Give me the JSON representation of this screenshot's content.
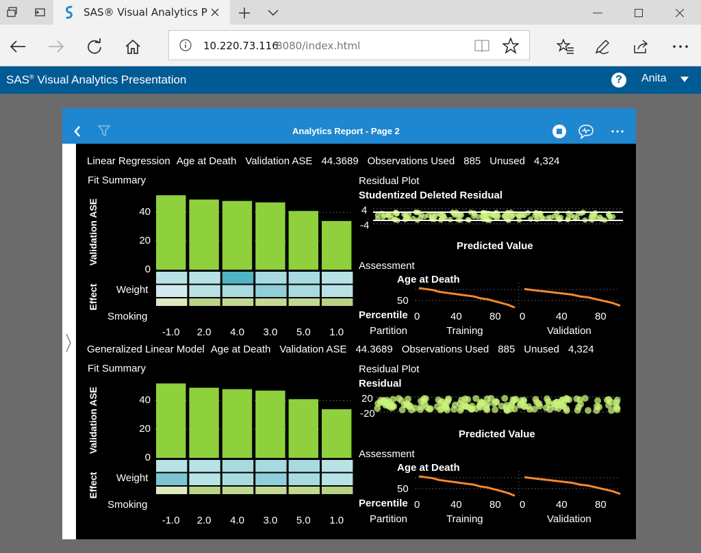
{
  "browser": {
    "tab_title": "SAS® Visual Analytics P",
    "url_host": "10.220.73.116",
    "url_rest": ":8080/index.html"
  },
  "app": {
    "title_main": "SAS",
    "title_sup": "®",
    "title_rest": " Visual Analytics Presentation",
    "help_label": "?",
    "user_name": "Anita"
  },
  "report": {
    "page_title": "Analytics Report - Page 2"
  },
  "colors": {
    "bar": "#8ed13c",
    "chrome_blue": "#005a94",
    "report_header": "#1f87cf",
    "scatter": "#c8f27a",
    "assessment_line": "#f28a2e"
  },
  "models": [
    {
      "summary": [
        "Linear Regression",
        "Age at Death",
        "Validation ASE",
        "44.3689",
        "Observations Used",
        "885",
        "Unused",
        "4,324"
      ],
      "fit_title": "Fit Summary",
      "y_axis_label": "Validation ASE",
      "effect_label": "Effect",
      "y_ticks": [
        "40",
        "20",
        "0"
      ],
      "row_labels": [
        "Weight",
        "Smoking"
      ],
      "categories": [
        "-1.0",
        "2.0",
        "4.0",
        "3.0",
        "5.0",
        "1.0"
      ],
      "bar_values": [
        52,
        49,
        48,
        47,
        41,
        34
      ],
      "heat_weight": [
        "#b8e2e6",
        "#b8e2e6",
        "#4fb4c3",
        "#a8dbe0",
        "#a8dbe0",
        "#b8e2e6"
      ],
      "heat_mid": [
        "#d2eaf0",
        "#b8e2e6",
        "#a8dbe0",
        "#8fcfd9",
        "#a8dbe0",
        "#b8e2e6"
      ],
      "heat_mid2": [
        "#dde9bf",
        "#b9d485",
        "#c0d890",
        "#c4d993",
        "#c0d890",
        "#b8d283"
      ],
      "heat_smoking": [
        "#dde9bf",
        "#7cc6d1",
        "#52b7c6",
        "#e6efc7",
        "#3eb0c1",
        "#b8e2e6"
      ],
      "residual_title": "Residual Plot",
      "residual_axis": "Studentized Deleted Residual",
      "residual_ticks": [
        "4",
        "-4"
      ],
      "residual_x_label": "Predicted Value",
      "assessment_title": "Assessment",
      "assessment_axis": "Age at Death",
      "assessment_tick": "50",
      "percentile_label": "Percentile",
      "percentile_ticks": [
        "0",
        "40",
        "80"
      ],
      "partition_label": "Partition",
      "partitions": [
        "Training",
        "Validation"
      ],
      "training_curve": [
        74,
        73,
        72,
        70,
        69,
        68,
        67,
        66,
        65,
        63,
        62,
        60,
        58,
        56,
        53
      ],
      "validation_curve": [
        73,
        72,
        71,
        70,
        69,
        68,
        67,
        65,
        64,
        62,
        60,
        58,
        55
      ]
    },
    {
      "summary": [
        "Generalized Linear Model",
        "Age at Death",
        "Validation ASE",
        "44.3689",
        "Observations Used",
        "885",
        "Unused",
        "4,324"
      ],
      "fit_title": "Fit Summary",
      "y_axis_label": "Validation ASE",
      "effect_label": "Effect",
      "y_ticks": [
        "40",
        "20",
        "0"
      ],
      "row_labels": [
        "Weight",
        "Smoking"
      ],
      "categories": [
        "-1.0",
        "2.0",
        "4.0",
        "3.0",
        "5.0",
        "1.0"
      ],
      "bar_values": [
        52,
        49,
        48,
        47,
        41,
        34
      ],
      "heat_weight": [
        "#b8e2e6",
        "#b8e2e6",
        "#a8dbe0",
        "#a8dbe0",
        "#a8dbe0",
        "#b8e2e6"
      ],
      "heat_mid": [
        "#7cc6d1",
        "#b8e2e6",
        "#a8dbe0",
        "#8fcfd9",
        "#a8dbe0",
        "#b8e2e6"
      ],
      "heat_mid2": [
        "#dde9bf",
        "#b9d485",
        "#c0d890",
        "#c4d993",
        "#c0d890",
        "#b8d283"
      ],
      "heat_smoking": [
        "#dde9bf",
        "#7cc6d1",
        "#52b7c6",
        "#e6efc7",
        "#3eb0c1",
        "#b8e2e6"
      ],
      "residual_title": "Residual Plot",
      "residual_axis": "Residual",
      "residual_ticks": [
        "20",
        "-20"
      ],
      "residual_x_label": "Predicted Value",
      "assessment_title": "Assessment",
      "assessment_axis": "Age at Death",
      "assessment_tick": "50",
      "percentile_label": "Percentile",
      "percentile_ticks": [
        "0",
        "40",
        "80"
      ],
      "partition_label": "Partition",
      "partitions": [
        "Training",
        "Validation"
      ],
      "training_curve": [
        74,
        73,
        72,
        70,
        69,
        68,
        67,
        66,
        65,
        63,
        62,
        60,
        58,
        56,
        53
      ],
      "validation_curve": [
        73,
        72,
        71,
        70,
        69,
        68,
        67,
        65,
        64,
        62,
        60,
        58,
        55
      ]
    }
  ],
  "chart_data": [
    {
      "type": "bar",
      "title": "Fit Summary",
      "ylabel": "Validation ASE",
      "categories": [
        "-1.0",
        "2.0",
        "4.0",
        "3.0",
        "5.0",
        "1.0"
      ],
      "values": [
        52,
        49,
        48,
        47,
        41,
        34
      ],
      "ylim": [
        0,
        55
      ]
    },
    {
      "type": "bar",
      "title": "Fit Summary",
      "ylabel": "Validation ASE",
      "categories": [
        "-1.0",
        "2.0",
        "4.0",
        "3.0",
        "5.0",
        "1.0"
      ],
      "values": [
        52,
        49,
        48,
        47,
        41,
        34
      ],
      "ylim": [
        0,
        55
      ]
    }
  ]
}
